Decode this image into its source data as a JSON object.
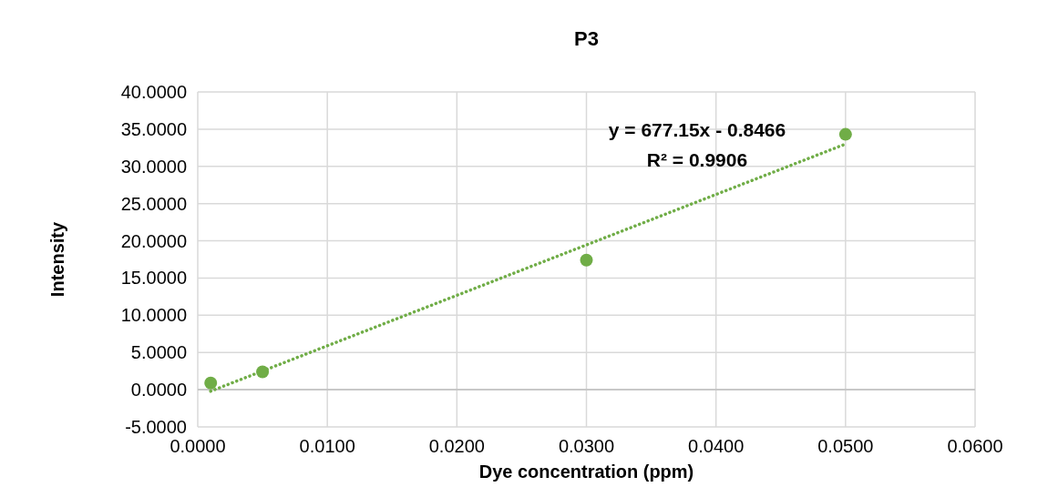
{
  "chart_data": {
    "type": "scatter",
    "title": "P3",
    "xlabel": "Dye concentration (ppm)",
    "ylabel": "Intensity",
    "xlim": [
      0,
      0.06
    ],
    "xticks": [
      {
        "value": 0,
        "label": "0.0000"
      },
      {
        "value": 0.01,
        "label": "0.0100"
      },
      {
        "value": 0.02,
        "label": "0.0200"
      },
      {
        "value": 0.03,
        "label": "0.0300"
      },
      {
        "value": 0.04,
        "label": "0.0400"
      },
      {
        "value": 0.05,
        "label": "0.0500"
      },
      {
        "value": 0.06,
        "label": "0.0600"
      }
    ],
    "ylim": [
      -5,
      40
    ],
    "yticks": [
      {
        "value": -5,
        "label": "-5.0000"
      },
      {
        "value": 0,
        "label": "0.0000"
      },
      {
        "value": 5,
        "label": "5.0000"
      },
      {
        "value": 10,
        "label": "10.0000"
      },
      {
        "value": 15,
        "label": "15.0000"
      },
      {
        "value": 20,
        "label": "20.0000"
      },
      {
        "value": 25,
        "label": "25.0000"
      },
      {
        "value": 30,
        "label": "30.0000"
      },
      {
        "value": 35,
        "label": "35.0000"
      },
      {
        "value": 40,
        "label": "40.0000"
      }
    ],
    "grid": true,
    "series": [
      {
        "marker": "circle",
        "color": "#70ad47",
        "x": [
          0.001,
          0.005,
          0.03,
          0.05
        ],
        "values": [
          0.9,
          2.4,
          17.4,
          34.3
        ]
      },
      {
        "type": "line",
        "color": "#70ad47",
        "line_style": "dotted",
        "x": [
          0.001,
          0.05
        ],
        "values": [
          -0.2,
          33.0
        ]
      }
    ],
    "annotations": [
      "y = 677.15x - 0.8466",
      "R² = 0.9906"
    ]
  }
}
